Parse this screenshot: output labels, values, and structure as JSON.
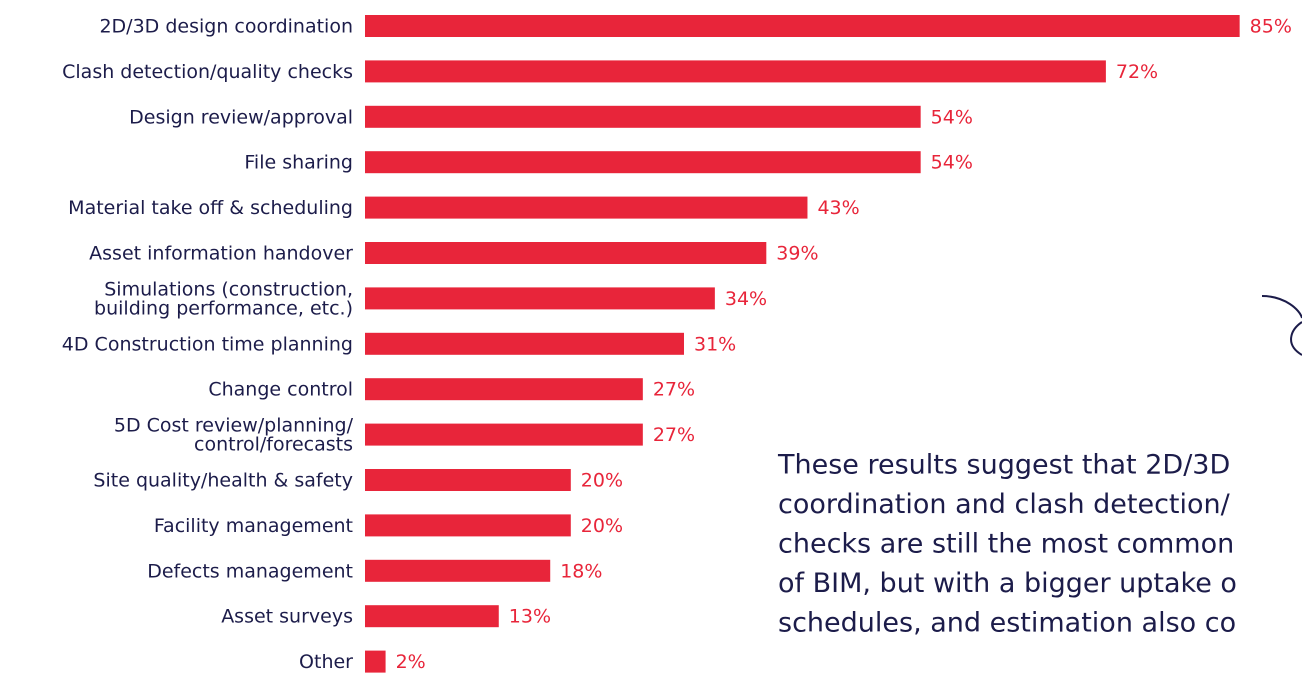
{
  "chart_data": {
    "type": "bar",
    "orientation": "horizontal",
    "categories": [
      [
        "2D/3D design coordination"
      ],
      [
        "Clash detection/quality checks"
      ],
      [
        "Design review/approval"
      ],
      [
        "File sharing"
      ],
      [
        "Material take off & scheduling"
      ],
      [
        "Asset information handover"
      ],
      [
        "Simulations (construction,",
        "building performance, etc.)"
      ],
      [
        "4D Construction time planning"
      ],
      [
        "Change control"
      ],
      [
        "5D Cost review/planning/",
        "control/forecasts"
      ],
      [
        "Site quality/health & safety"
      ],
      [
        "Facility management"
      ],
      [
        "Defects management"
      ],
      [
        "Asset surveys"
      ],
      [
        "Other"
      ]
    ],
    "values": [
      85,
      72,
      54,
      54,
      43,
      39,
      34,
      31,
      27,
      27,
      20,
      20,
      18,
      13,
      2
    ],
    "value_labels": [
      "85%",
      "72%",
      "54%",
      "54%",
      "43%",
      "39%",
      "34%",
      "31%",
      "27%",
      "27%",
      "20%",
      "20%",
      "18%",
      "13%",
      "2%"
    ],
    "color": "#e8253a"
  },
  "annotation": {
    "lines": [
      "These results suggest that 2D/3D",
      "coordination and clash detection/",
      "checks are still the most common",
      "of BIM, but with a bigger uptake o",
      "schedules, and estimation also co"
    ]
  }
}
